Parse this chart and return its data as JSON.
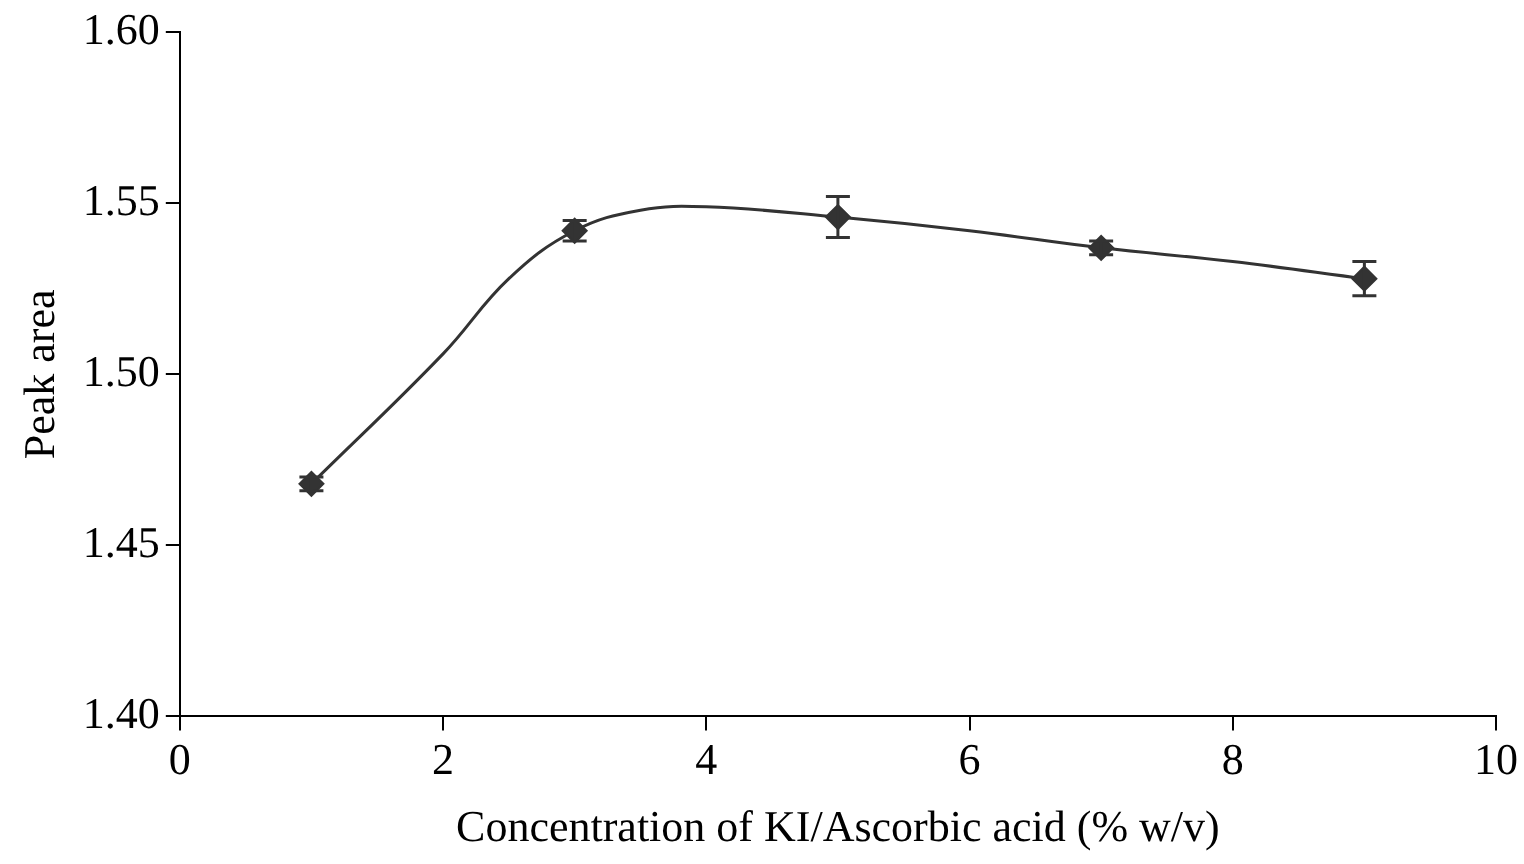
{
  "chart_data": {
    "type": "scatter",
    "xlabel": "Concentration of KI/Ascorbic acid (% w/v)",
    "ylabel": "Peak area",
    "xlim": [
      0,
      10
    ],
    "xticks": [
      0,
      2,
      4,
      6,
      8,
      10
    ],
    "ylim": [
      1.4,
      1.6
    ],
    "yticks": [
      {
        "value": 1.4,
        "label": "1.40"
      },
      {
        "value": 1.45,
        "label": "1.45"
      },
      {
        "value": 1.5,
        "label": "1.50"
      },
      {
        "value": 1.55,
        "label": "1.55"
      },
      {
        "value": 1.6,
        "label": "1.60"
      }
    ],
    "series": [
      {
        "type": "line",
        "marker": "none",
        "color": "#333333",
        "x": [
          1,
          2,
          2.5,
          3,
          3.5,
          4,
          5,
          6,
          7,
          8,
          9
        ],
        "values": [
          1.468,
          1.506,
          1.528,
          1.542,
          1.548,
          1.549,
          1.546,
          1.542,
          1.537,
          1.533,
          1.528
        ]
      },
      {
        "marker": "diamond",
        "color": "#333333",
        "x": [
          1,
          3,
          5,
          7,
          9
        ],
        "values": [
          1.468,
          1.542,
          1.546,
          1.537,
          1.528
        ],
        "errors": [
          0.002,
          0.003,
          0.006,
          0.002,
          0.005
        ]
      }
    ],
    "grid": false,
    "legend": false
  }
}
